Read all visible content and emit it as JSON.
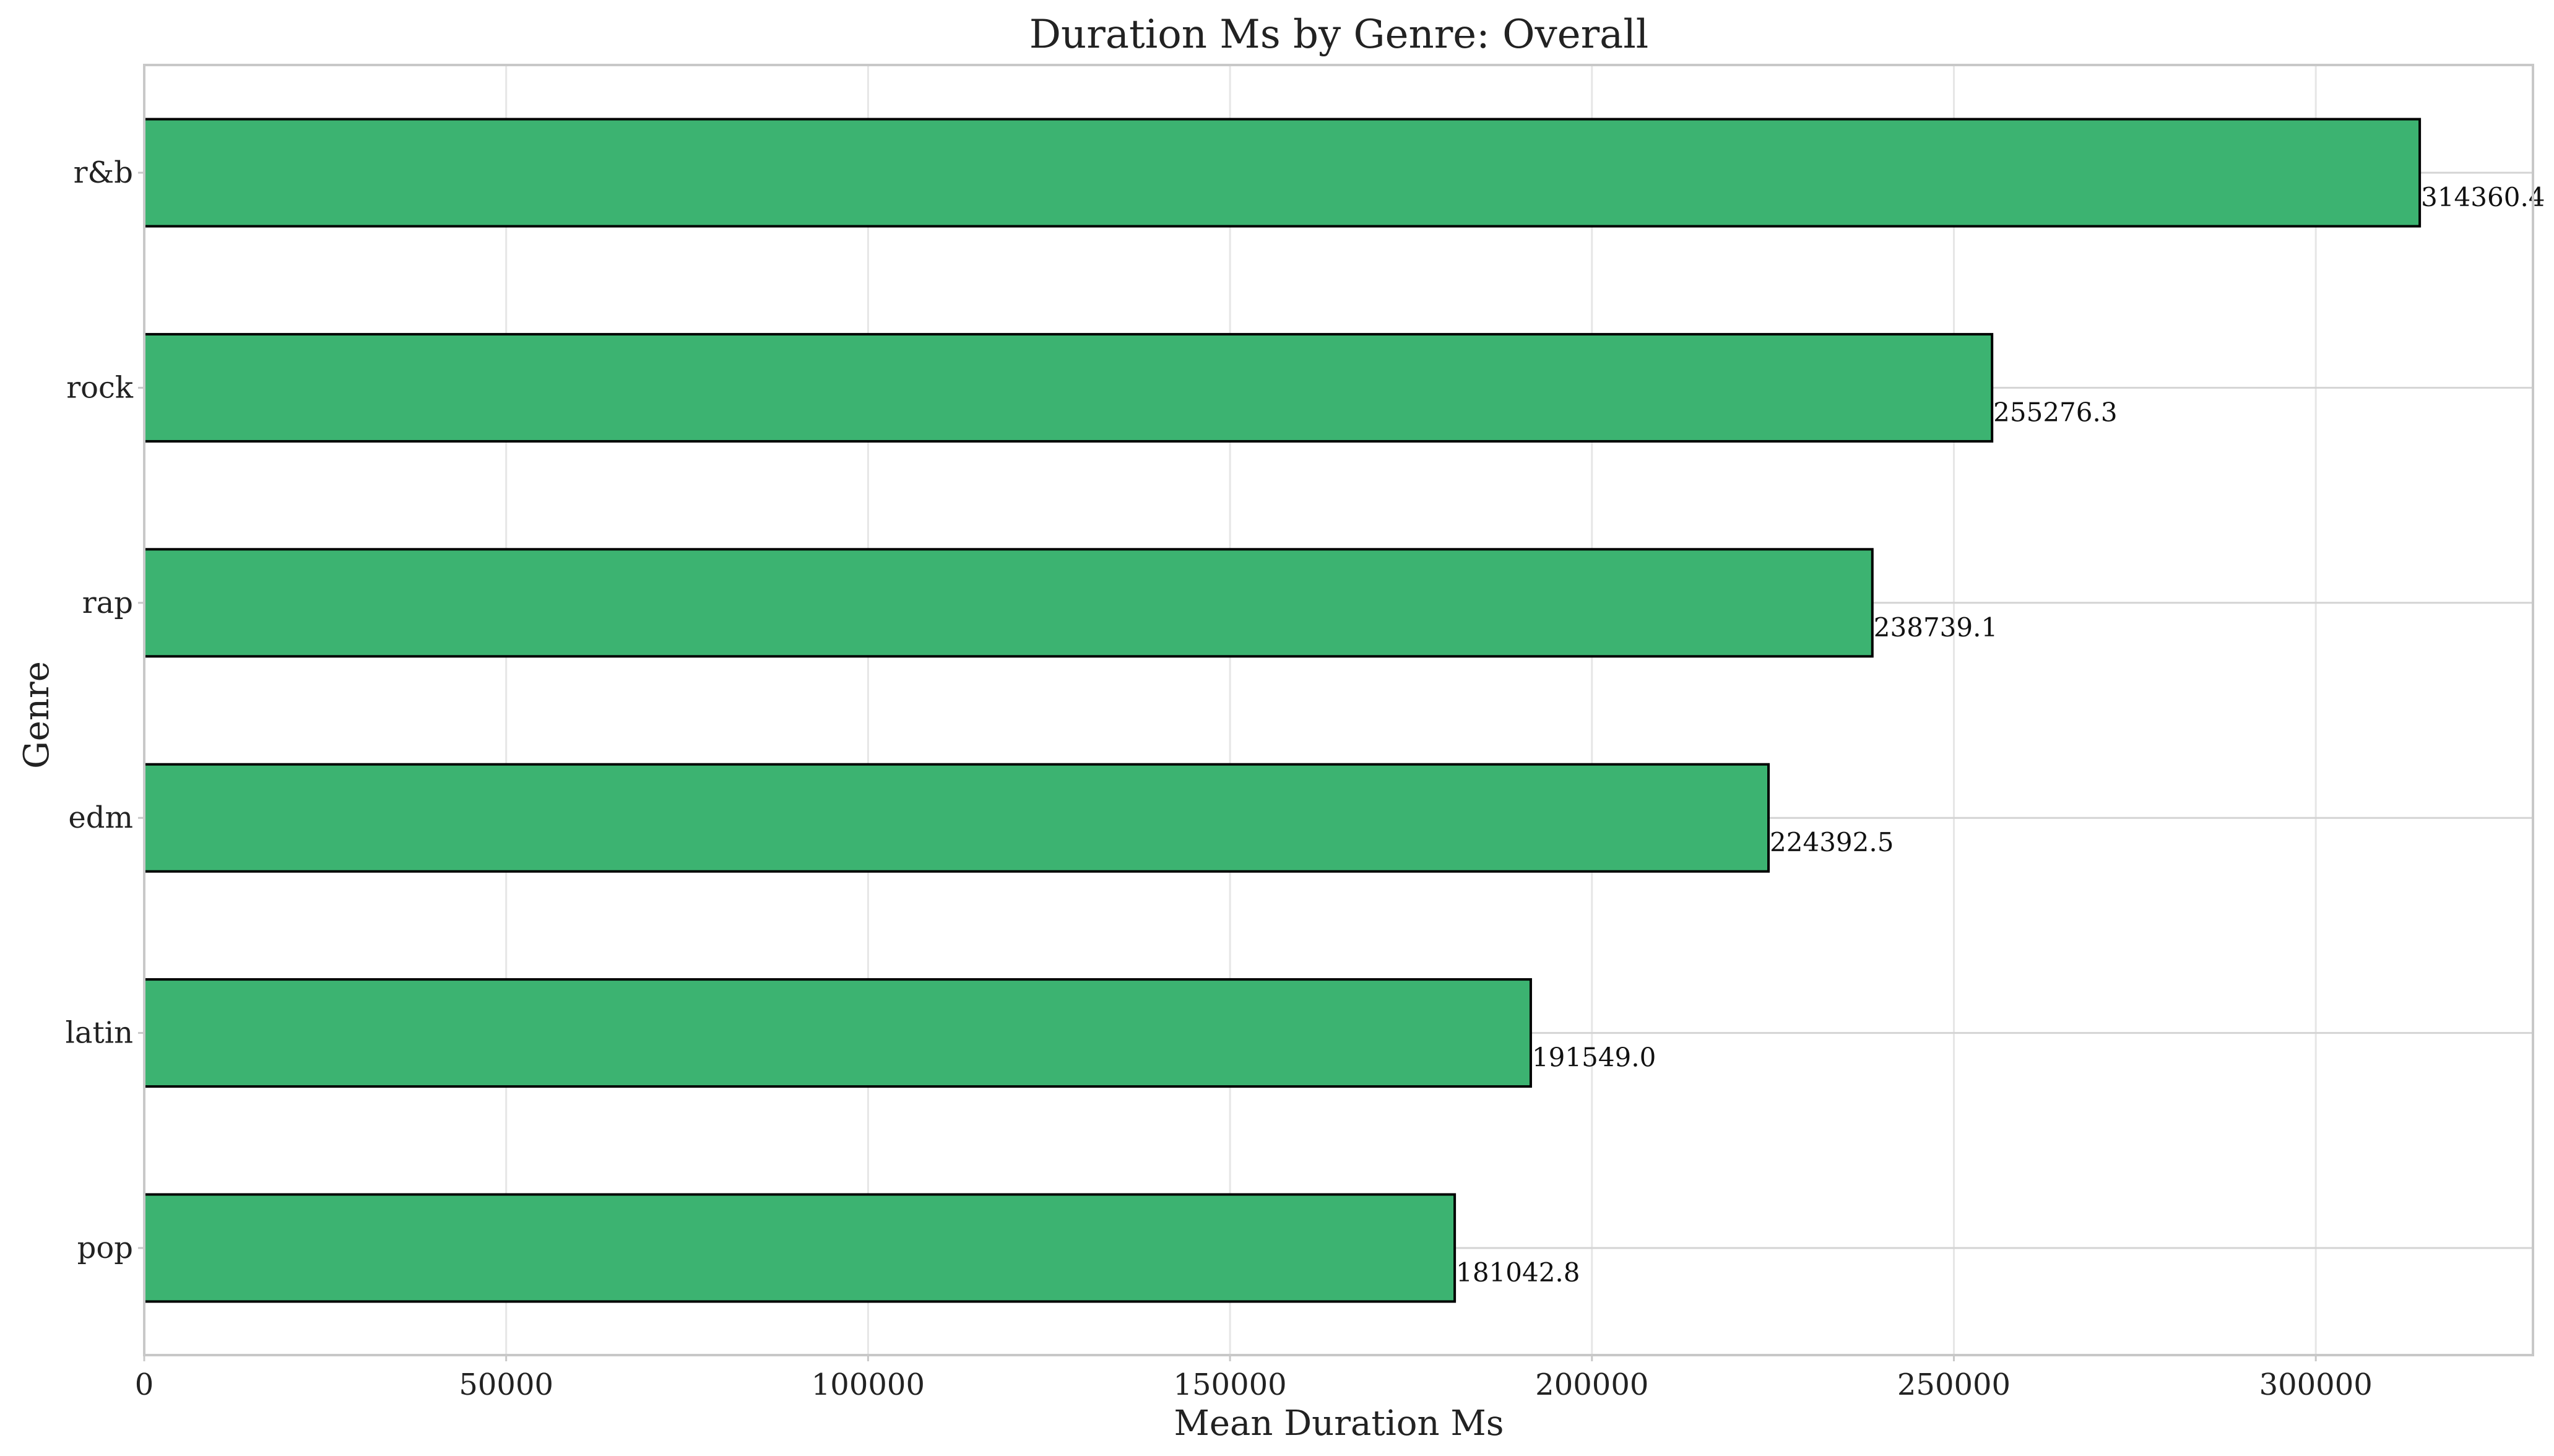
{
  "chart_data": {
    "type": "bar",
    "orientation": "horizontal",
    "title": "Duration Ms by Genre: Overall",
    "xlabel": "Mean Duration Ms",
    "ylabel": "Genre",
    "categories": [
      "r&b",
      "rock",
      "rap",
      "edm",
      "latin",
      "pop"
    ],
    "values": [
      314360.4,
      255276.3,
      238739.1,
      224392.5,
      191549.0,
      181042.8
    ],
    "data_labels": [
      "314360.4",
      "255276.3",
      "238739.1",
      "224392.5",
      "191549.0",
      "181042.8"
    ],
    "xlim": [
      0,
      330000
    ],
    "xticks": [
      0,
      50000,
      100000,
      150000,
      200000,
      250000,
      300000
    ],
    "xtick_labels": [
      "0",
      "50000",
      "100000",
      "150000",
      "200000",
      "250000",
      "300000"
    ],
    "grid": true,
    "colors": {
      "bar": "#3cb371",
      "edge": "#000000"
    }
  }
}
